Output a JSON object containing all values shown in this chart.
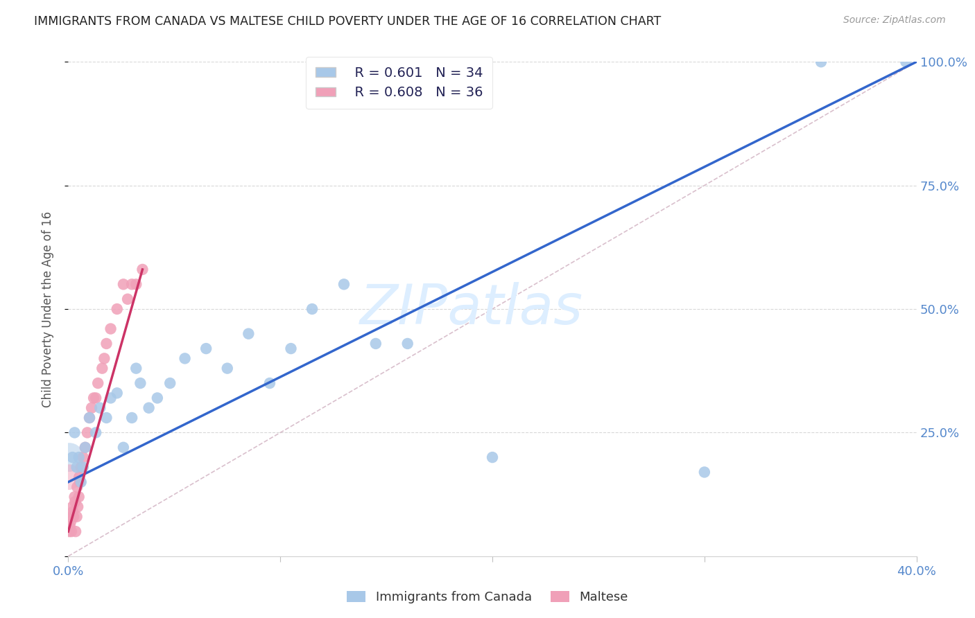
{
  "title": "IMMIGRANTS FROM CANADA VS MALTESE CHILD POVERTY UNDER THE AGE OF 16 CORRELATION CHART",
  "source": "Source: ZipAtlas.com",
  "ylabel": "Child Poverty Under the Age of 16",
  "legend_blue": "Immigrants from Canada",
  "legend_pink": "Maltese",
  "blue_R": "0.601",
  "blue_N": "34",
  "pink_R": "0.608",
  "pink_N": "36",
  "blue_color": "#a8c8e8",
  "pink_color": "#f0a0b8",
  "blue_line_color": "#3366cc",
  "pink_line_color": "#cc3366",
  "ref_line_color": "#d0b0c0",
  "grid_color": "#d8d8d8",
  "watermark": "ZIPatlas",
  "watermark_color": "#ddeeff",
  "tick_color": "#5588cc",
  "background_color": "#ffffff",
  "xlim": [
    0.0,
    40.0
  ],
  "ylim": [
    0.0,
    100.0
  ],
  "x_ticks": [
    0,
    10,
    20,
    30,
    40
  ],
  "x_tick_labels": [
    "0.0%",
    "",
    "",
    "",
    "40.0%"
  ],
  "y_ticks": [
    0,
    25,
    50,
    75,
    100
  ],
  "y_tick_labels": [
    "",
    "25.0%",
    "50.0%",
    "75.0%",
    "100.0%"
  ],
  "blue_x": [
    0.2,
    0.4,
    0.6,
    0.8,
    1.0,
    1.3,
    1.5,
    1.8,
    2.0,
    2.3,
    2.6,
    3.0,
    3.4,
    3.8,
    4.2,
    4.8,
    5.5,
    6.5,
    7.5,
    8.5,
    9.5,
    10.5,
    11.5,
    13.0,
    14.5,
    16.0,
    0.3,
    0.5,
    0.7,
    3.2,
    20.0,
    30.0,
    35.5,
    39.5
  ],
  "blue_y": [
    20.0,
    18.0,
    15.0,
    22.0,
    28.0,
    25.0,
    30.0,
    28.0,
    32.0,
    33.0,
    22.0,
    28.0,
    35.0,
    30.0,
    32.0,
    35.0,
    40.0,
    42.0,
    38.0,
    45.0,
    35.0,
    42.0,
    50.0,
    55.0,
    43.0,
    43.0,
    25.0,
    20.0,
    18.0,
    38.0,
    20.0,
    17.0,
    100.0,
    100.0
  ],
  "pink_x": [
    0.05,
    0.1,
    0.15,
    0.2,
    0.25,
    0.3,
    0.35,
    0.4,
    0.45,
    0.5,
    0.55,
    0.6,
    0.7,
    0.8,
    0.9,
    1.0,
    1.1,
    1.2,
    1.4,
    1.6,
    1.8,
    2.0,
    2.3,
    2.6,
    3.0,
    3.5,
    0.08,
    0.12,
    0.22,
    0.32,
    0.42,
    0.52,
    1.3,
    1.7,
    2.8,
    3.2
  ],
  "pink_y": [
    5.0,
    8.0,
    5.0,
    10.0,
    8.0,
    12.0,
    5.0,
    8.0,
    10.0,
    12.0,
    15.0,
    18.0,
    20.0,
    22.0,
    25.0,
    28.0,
    30.0,
    32.0,
    35.0,
    38.0,
    43.0,
    46.0,
    50.0,
    55.0,
    55.0,
    58.0,
    6.0,
    7.0,
    9.0,
    11.0,
    14.0,
    16.0,
    32.0,
    40.0,
    52.0,
    55.0
  ],
  "blue_trend_x": [
    0.0,
    40.0
  ],
  "blue_trend_y": [
    15.0,
    100.0
  ],
  "pink_trend_x": [
    0.0,
    3.5
  ],
  "pink_trend_y": [
    5.0,
    58.0
  ],
  "ref_line_x": [
    0.0,
    40.0
  ],
  "ref_line_y": [
    0.0,
    100.0
  ]
}
